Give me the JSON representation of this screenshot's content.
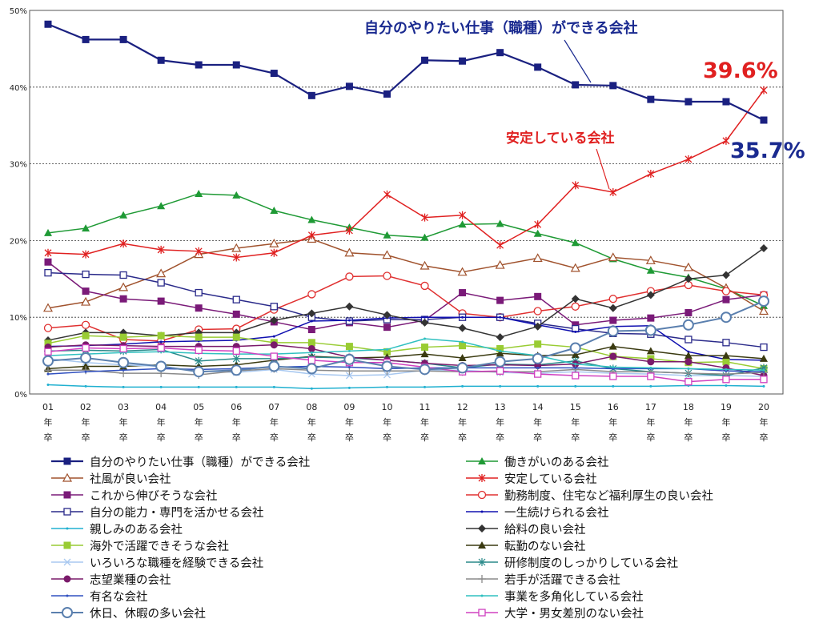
{
  "chart_data": {
    "type": "line",
    "categories": [
      "01\n年\n卒",
      "02\n年\n卒",
      "03\n年\n卒",
      "04\n年\n卒",
      "05\n年\n卒",
      "06\n年\n卒",
      "07\n年\n卒",
      "08\n年\n卒",
      "09\n年\n卒",
      "10\n年\n卒",
      "11\n年\n卒",
      "12\n年\n卒",
      "13\n年\n卒",
      "14\n年\n卒",
      "15\n年\n卒",
      "16\n年\n卒",
      "17\n年\n卒",
      "18\n年\n卒",
      "19\n年\n卒",
      "20\n年\n卒"
    ],
    "ylim": [
      0,
      50
    ],
    "yticks": [
      "0%",
      "10%",
      "20%",
      "30%",
      "40%",
      "50%"
    ],
    "grid": true,
    "legend_position": "bottom",
    "annotations": {
      "top_series": "自分のやりたい仕事（職種）ができる会社",
      "stable": "安定している会社",
      "value_red": "39.6%",
      "value_blue": "35.7%"
    },
    "series": [
      {
        "name": "自分のやりたい仕事（職種）ができる会社",
        "color": "#1a2080",
        "marker": "square-filled",
        "width": 2.2,
        "values": [
          48.2,
          46.2,
          46.2,
          43.5,
          42.9,
          42.9,
          41.8,
          38.9,
          40.1,
          39.1,
          43.5,
          43.4,
          44.5,
          42.6,
          40.3,
          40.2,
          38.4,
          38.1,
          38.1,
          35.7
        ]
      },
      {
        "name": "働きがいのある会社",
        "color": "#1f9a35",
        "marker": "triangle-filled",
        "width": 1.5,
        "values": [
          21.0,
          21.6,
          23.3,
          24.5,
          26.1,
          25.9,
          23.9,
          22.7,
          21.7,
          20.7,
          20.4,
          22.1,
          22.2,
          20.9,
          19.7,
          17.6,
          16.1,
          15.2,
          13.7,
          11.5
        ]
      },
      {
        "name": "社風が良い会社",
        "color": "#a0522d",
        "marker": "triangle-open",
        "width": 1.5,
        "values": [
          11.2,
          12.0,
          13.9,
          15.7,
          18.2,
          19.0,
          19.6,
          20.2,
          18.4,
          18.1,
          16.7,
          15.9,
          16.8,
          17.7,
          16.4,
          17.8,
          17.4,
          16.5,
          13.8,
          10.8
        ]
      },
      {
        "name": "安定している会社",
        "color": "#e02020",
        "marker": "star",
        "width": 1.5,
        "values": [
          18.4,
          18.2,
          19.6,
          18.8,
          18.6,
          17.8,
          18.4,
          20.7,
          21.3,
          26.0,
          23.0,
          23.3,
          19.4,
          22.1,
          27.2,
          26.3,
          28.7,
          30.6,
          33.0,
          39.6
        ]
      },
      {
        "name": "これから伸びそうな会社",
        "color": "#7a1a78",
        "marker": "square-filled",
        "width": 1.5,
        "values": [
          17.2,
          13.4,
          12.4,
          12.1,
          11.2,
          10.4,
          9.4,
          8.4,
          9.3,
          8.7,
          9.6,
          13.2,
          12.2,
          12.7,
          9.0,
          9.6,
          9.9,
          10.6,
          12.3,
          12.9
        ]
      },
      {
        "name": "勤務制度、住宅など福利厚生の良い会社",
        "color": "#e03030",
        "marker": "circle-open",
        "width": 1.5,
        "values": [
          8.6,
          9.0,
          7.1,
          6.9,
          8.4,
          8.5,
          11.0,
          13.0,
          15.3,
          15.4,
          14.1,
          10.5,
          10.0,
          10.8,
          11.4,
          12.4,
          13.4,
          14.2,
          13.4,
          12.9
        ]
      },
      {
        "name": "自分の能力・専門を活かせる会社",
        "color": "#2a2a8a",
        "marker": "square-open",
        "width": 1.5,
        "values": [
          15.8,
          15.6,
          15.5,
          14.5,
          13.2,
          12.3,
          11.4,
          10.0,
          9.5,
          9.7,
          9.7,
          10.0,
          10.0,
          9.2,
          8.5,
          7.9,
          7.8,
          7.1,
          6.7,
          6.1
        ]
      },
      {
        "name": "一生続けられる会社",
        "color": "#1010b0",
        "marker": "line",
        "width": 1.5,
        "values": [
          6.2,
          6.3,
          6.5,
          6.8,
          6.9,
          7.0,
          7.5,
          9.5,
          9.6,
          9.9,
          10.0,
          10.0,
          10.0,
          9.0,
          8.1,
          8.8,
          8.9,
          5.5,
          4.5,
          4.4
        ]
      },
      {
        "name": "親しみのある会社",
        "color": "#20b0d0",
        "marker": "line",
        "width": 1.5,
        "values": [
          1.2,
          1.0,
          0.9,
          0.9,
          0.9,
          0.9,
          0.9,
          0.7,
          0.8,
          0.9,
          0.9,
          1.0,
          1.0,
          1.0,
          1.0,
          1.0,
          1.0,
          1.1,
          1.1,
          1.0
        ]
      },
      {
        "name": "給料の良い会社",
        "color": "#333333",
        "marker": "diamond-filled",
        "width": 1.5,
        "values": [
          7.0,
          8.0,
          8.0,
          7.6,
          8.0,
          8.0,
          9.6,
          10.5,
          11.4,
          10.3,
          9.3,
          8.6,
          7.4,
          8.8,
          12.4,
          11.2,
          12.9,
          15.0,
          15.5,
          19.0
        ]
      },
      {
        "name": "海外で活躍できそうな会社",
        "color": "#99cc33",
        "marker": "square-filled",
        "width": 1.5,
        "values": [
          6.6,
          7.6,
          7.4,
          7.6,
          7.4,
          7.4,
          6.7,
          6.7,
          6.2,
          5.5,
          6.1,
          6.3,
          5.9,
          6.5,
          6.1,
          4.9,
          4.6,
          4.1,
          4.2,
          3.3
        ]
      },
      {
        "name": "転勤のない会社",
        "color": "#3a3a10",
        "marker": "triangle-filled",
        "width": 1.5,
        "values": [
          3.3,
          3.6,
          3.6,
          3.8,
          3.6,
          3.8,
          4.4,
          4.9,
          4.7,
          4.8,
          5.2,
          4.7,
          5.3,
          5.0,
          5.1,
          6.2,
          5.6,
          5.0,
          5.0,
          4.6
        ]
      },
      {
        "name": "いろいろな職種を経験できる会社",
        "color": "#a8c8f0",
        "marker": "x",
        "width": 1.5,
        "values": [
          4.6,
          4.1,
          3.8,
          3.6,
          3.0,
          2.8,
          3.2,
          2.6,
          2.4,
          2.5,
          3.1,
          3.1,
          2.8,
          2.7,
          2.9,
          2.7,
          2.6,
          2.4,
          2.4,
          2.3
        ]
      },
      {
        "name": "研修制度のしっかりしている会社",
        "color": "#2a8a8a",
        "marker": "asterisk",
        "width": 1.5,
        "values": [
          5.6,
          5.7,
          5.6,
          5.8,
          4.3,
          4.6,
          4.6,
          4.8,
          4.7,
          4.4,
          4.0,
          3.4,
          3.9,
          3.8,
          4.3,
          3.3,
          2.9,
          2.7,
          2.4,
          3.4
        ]
      },
      {
        "name": "志望業種の会社",
        "color": "#7a1a6a",
        "marker": "circle-filled",
        "width": 1.5,
        "values": [
          6.1,
          6.4,
          6.3,
          6.2,
          6.2,
          6.2,
          6.4,
          5.9,
          4.8,
          4.4,
          4.0,
          3.7,
          3.8,
          3.7,
          3.9,
          4.9,
          4.2,
          4.2,
          3.4,
          2.4
        ]
      },
      {
        "name": "若手が活躍できる会社",
        "color": "#8a8a8a",
        "marker": "plus",
        "width": 1.5,
        "values": [
          3.1,
          3.1,
          2.7,
          2.7,
          2.5,
          3.0,
          3.3,
          3.1,
          3.0,
          3.0,
          3.0,
          2.9,
          2.9,
          2.9,
          3.2,
          2.9,
          2.9,
          2.7,
          2.6,
          2.8
        ]
      },
      {
        "name": "有名な会社",
        "color": "#3050c0",
        "marker": "line",
        "width": 1.5,
        "values": [
          2.6,
          2.9,
          3.1,
          3.3,
          3.2,
          3.3,
          3.5,
          3.6,
          3.5,
          3.3,
          3.4,
          3.4,
          3.4,
          3.4,
          3.4,
          3.3,
          3.3,
          3.3,
          3.0,
          2.9
        ]
      },
      {
        "name": "事業を多角化している会社",
        "color": "#30c0c0",
        "marker": "line",
        "width": 1.5,
        "values": [
          5.0,
          5.2,
          5.4,
          5.5,
          5.3,
          5.2,
          5.2,
          5.4,
          5.6,
          5.8,
          7.2,
          6.8,
          5.6,
          5.0,
          3.9,
          3.5,
          3.4,
          3.3,
          3.2,
          3.1
        ]
      },
      {
        "name": "休日、休暇の多い会社",
        "color": "#5a7fae",
        "marker": "circle-open-large",
        "width": 2,
        "values": [
          4.3,
          4.7,
          4.1,
          3.6,
          2.9,
          3.1,
          3.6,
          3.3,
          4.5,
          3.6,
          3.2,
          3.4,
          4.2,
          4.6,
          6.0,
          8.2,
          8.3,
          9.0,
          10.0,
          12.1
        ]
      },
      {
        "name": "大学・男女差別のない会社",
        "color": "#d040c0",
        "marker": "square-open",
        "width": 1.5,
        "values": [
          5.5,
          6.0,
          5.9,
          6.0,
          5.7,
          5.6,
          4.9,
          4.4,
          4.1,
          4.1,
          3.5,
          2.9,
          3.0,
          2.6,
          2.4,
          2.3,
          2.3,
          1.6,
          1.9,
          1.9
        ]
      }
    ]
  }
}
